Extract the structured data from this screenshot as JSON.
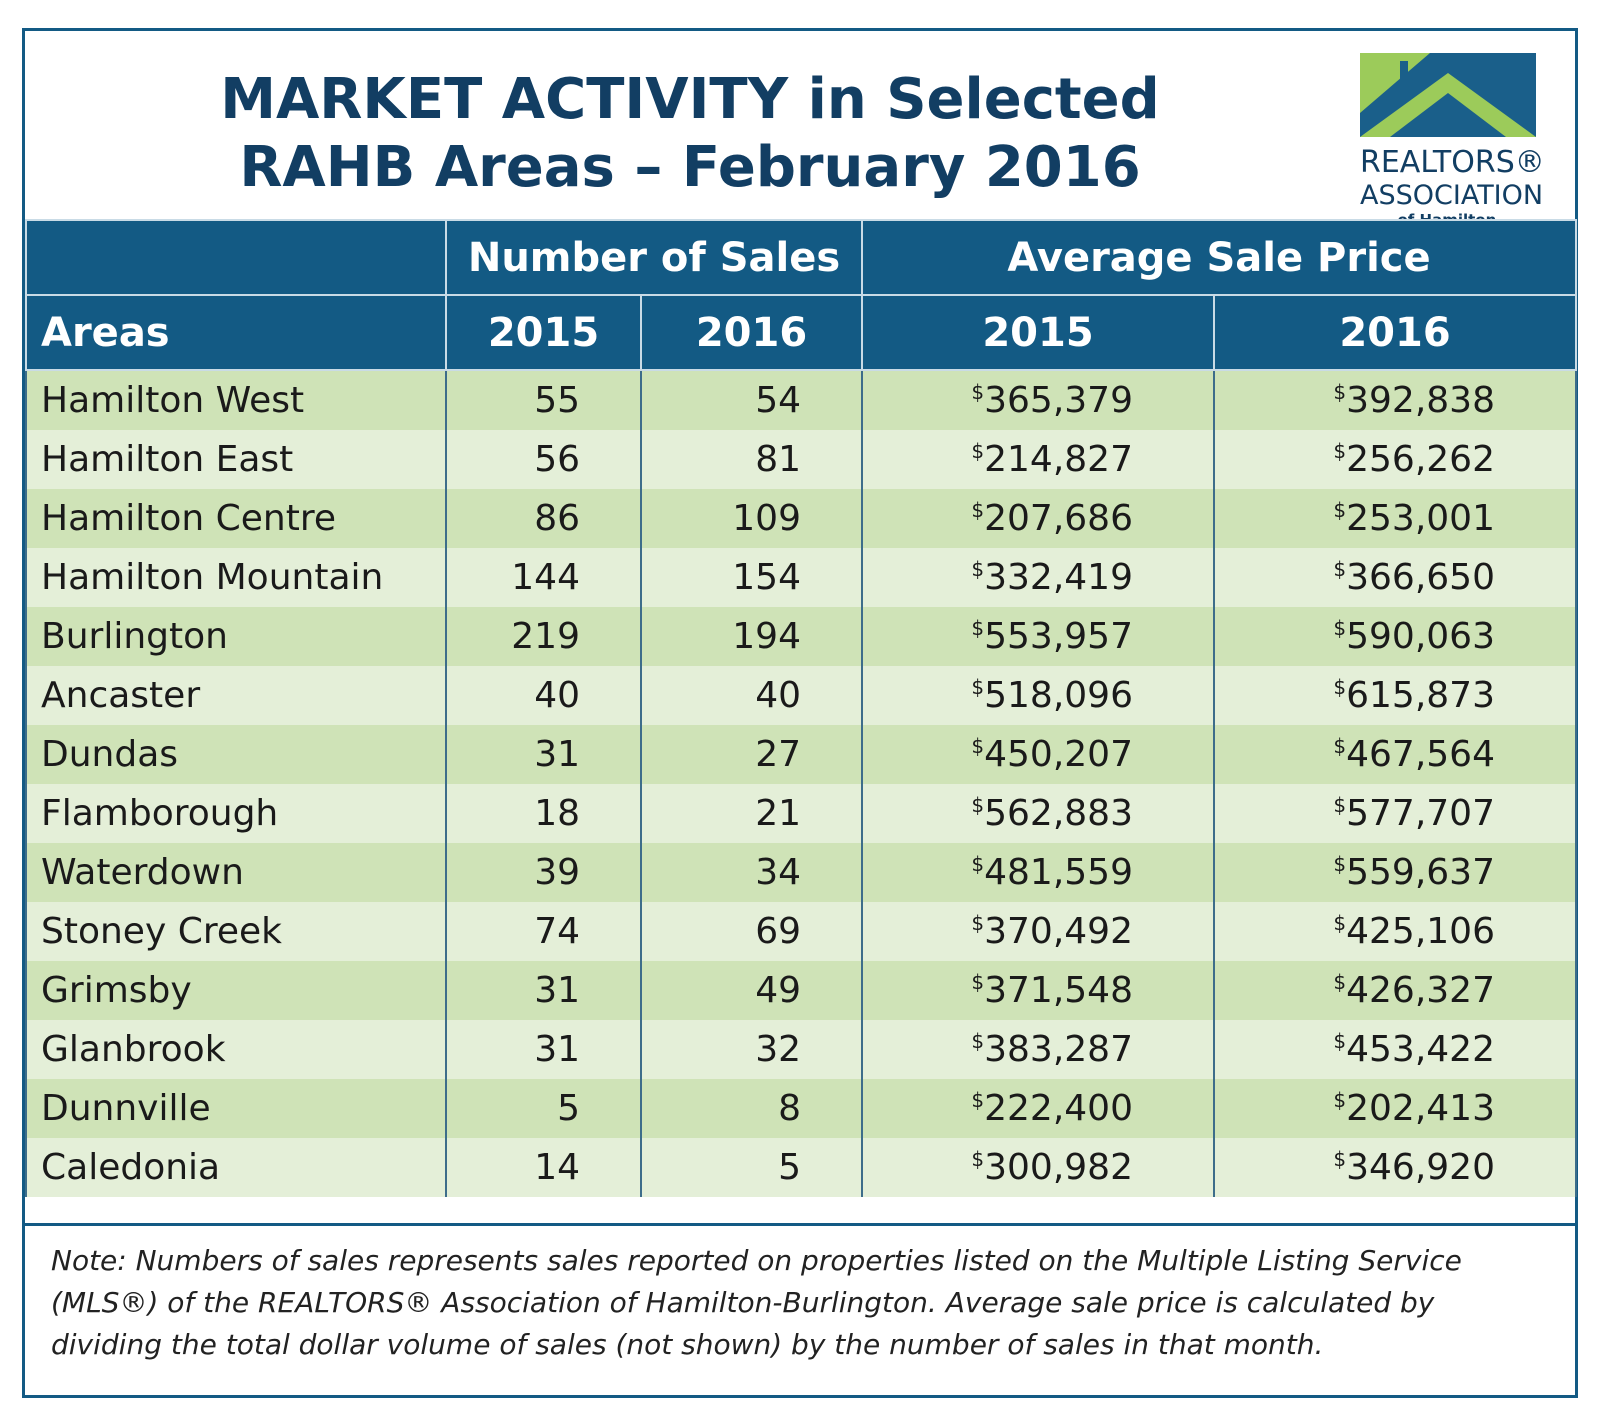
{
  "header": {
    "title": [
      "MARKET ACTIVITY in Selected",
      "RAHB Areas – February 2016"
    ],
    "logo": [
      "REALTORS®",
      "ASSOCIATION",
      "of Hamilton-Burlington"
    ]
  },
  "table": {
    "group_headers": [
      "Number of Sales",
      "Average Sale Price"
    ],
    "columns": [
      "Areas",
      "2015",
      "2016",
      "2015",
      "2016"
    ],
    "rows": [
      [
        "Hamilton West",
        55,
        54,
        "$365,379",
        "$392,838"
      ],
      [
        "Hamilton East",
        56,
        81,
        "$214,827",
        "$256,262"
      ],
      [
        "Hamilton Centre",
        86,
        109,
        "$207,686",
        "$253,001"
      ],
      [
        "Hamilton Mountain",
        144,
        154,
        "$332,419",
        "$366,650"
      ],
      [
        "Burlington",
        219,
        194,
        "$553,957",
        "$590,063"
      ],
      [
        "Ancaster",
        40,
        40,
        "$518,096",
        "$615,873"
      ],
      [
        "Dundas",
        31,
        27,
        "$450,207",
        "$467,564"
      ],
      [
        "Flamborough",
        18,
        21,
        "$562,883",
        "$577,707"
      ],
      [
        "Waterdown",
        39,
        34,
        "$481,559",
        "$559,637"
      ],
      [
        "Stoney Creek",
        74,
        69,
        "$370,492",
        "$425,106"
      ],
      [
        "Grimsby",
        31,
        49,
        "$371,548",
        "$426,327"
      ],
      [
        "Glanbrook",
        31,
        32,
        "$383,287",
        "$453,422"
      ],
      [
        "Dunnville",
        5,
        8,
        "$222,400",
        "$202,413"
      ],
      [
        "Caledonia",
        14,
        5,
        "$300,982",
        "$346,920"
      ]
    ]
  },
  "note": "Note:  Numbers of sales represents sales reported on properties listed on the Multiple Listing Service (MLS®) of the REALTORS® Association of Hamilton-Burlington.  Average sale price is calculated by dividing the total dollar volume of sales (not shown) by the number of sales in that month."
}
